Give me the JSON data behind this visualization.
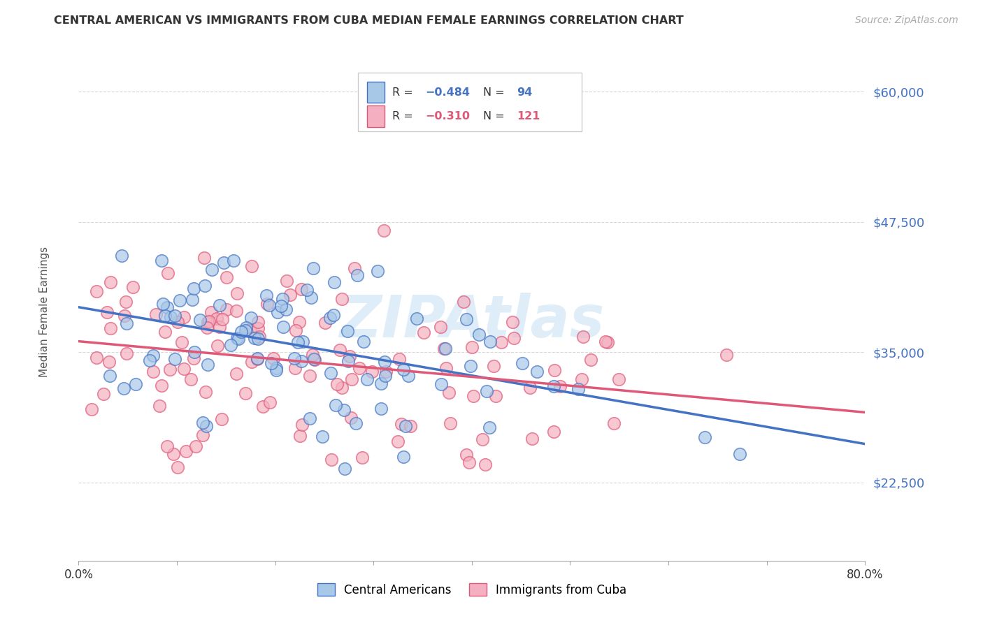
{
  "title": "CENTRAL AMERICAN VS IMMIGRANTS FROM CUBA MEDIAN FEMALE EARNINGS CORRELATION CHART",
  "source": "Source: ZipAtlas.com",
  "ylabel": "Median Female Earnings",
  "yticks": [
    22500,
    35000,
    47500,
    60000
  ],
  "ytick_labels": [
    "$22,500",
    "$35,000",
    "$47,500",
    "$60,000"
  ],
  "xmin": 0.0,
  "xmax": 0.8,
  "ymin": 15000,
  "ymax": 64000,
  "series1_color": "#a8c8e8",
  "series1_line_color": "#4472c4",
  "series1_label": "Central Americans",
  "series1_R": -0.484,
  "series1_N": 94,
  "series2_color": "#f4b0c0",
  "series2_line_color": "#e05878",
  "series2_label": "Immigrants from Cuba",
  "series2_R": -0.31,
  "series2_N": 121,
  "watermark": "ZIPAtlas",
  "background_color": "#ffffff",
  "grid_color": "#d8d8d8",
  "ytick_color": "#4472c4",
  "title_color": "#333333",
  "source_color": "#aaaaaa"
}
